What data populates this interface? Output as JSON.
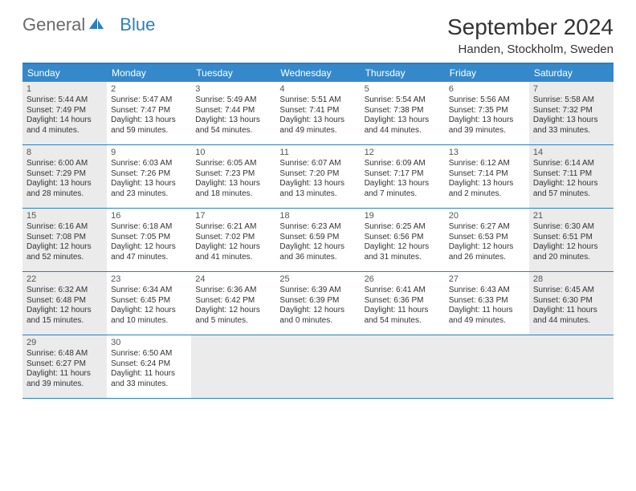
{
  "brand": {
    "part1": "General",
    "part2": "Blue"
  },
  "title": "September 2024",
  "location": "Handen, Stockholm, Sweden",
  "colors": {
    "headerBg": "#3589ca",
    "borderBlue": "#2b7fc1",
    "grayCell": "#ebebeb",
    "textDark": "#333333",
    "textMuted": "#6a6a6a"
  },
  "dayNames": [
    "Sunday",
    "Monday",
    "Tuesday",
    "Wednesday",
    "Thursday",
    "Friday",
    "Saturday"
  ],
  "weeks": [
    [
      {
        "n": "1",
        "gray": true,
        "sunrise": "5:44 AM",
        "sunset": "7:49 PM",
        "daylight": "14 hours and 4 minutes."
      },
      {
        "n": "2",
        "gray": false,
        "sunrise": "5:47 AM",
        "sunset": "7:47 PM",
        "daylight": "13 hours and 59 minutes."
      },
      {
        "n": "3",
        "gray": false,
        "sunrise": "5:49 AM",
        "sunset": "7:44 PM",
        "daylight": "13 hours and 54 minutes."
      },
      {
        "n": "4",
        "gray": false,
        "sunrise": "5:51 AM",
        "sunset": "7:41 PM",
        "daylight": "13 hours and 49 minutes."
      },
      {
        "n": "5",
        "gray": false,
        "sunrise": "5:54 AM",
        "sunset": "7:38 PM",
        "daylight": "13 hours and 44 minutes."
      },
      {
        "n": "6",
        "gray": false,
        "sunrise": "5:56 AM",
        "sunset": "7:35 PM",
        "daylight": "13 hours and 39 minutes."
      },
      {
        "n": "7",
        "gray": true,
        "sunrise": "5:58 AM",
        "sunset": "7:32 PM",
        "daylight": "13 hours and 33 minutes."
      }
    ],
    [
      {
        "n": "8",
        "gray": true,
        "sunrise": "6:00 AM",
        "sunset": "7:29 PM",
        "daylight": "13 hours and 28 minutes."
      },
      {
        "n": "9",
        "gray": false,
        "sunrise": "6:03 AM",
        "sunset": "7:26 PM",
        "daylight": "13 hours and 23 minutes."
      },
      {
        "n": "10",
        "gray": false,
        "sunrise": "6:05 AM",
        "sunset": "7:23 PM",
        "daylight": "13 hours and 18 minutes."
      },
      {
        "n": "11",
        "gray": false,
        "sunrise": "6:07 AM",
        "sunset": "7:20 PM",
        "daylight": "13 hours and 13 minutes."
      },
      {
        "n": "12",
        "gray": false,
        "sunrise": "6:09 AM",
        "sunset": "7:17 PM",
        "daylight": "13 hours and 7 minutes."
      },
      {
        "n": "13",
        "gray": false,
        "sunrise": "6:12 AM",
        "sunset": "7:14 PM",
        "daylight": "13 hours and 2 minutes."
      },
      {
        "n": "14",
        "gray": true,
        "sunrise": "6:14 AM",
        "sunset": "7:11 PM",
        "daylight": "12 hours and 57 minutes."
      }
    ],
    [
      {
        "n": "15",
        "gray": true,
        "sunrise": "6:16 AM",
        "sunset": "7:08 PM",
        "daylight": "12 hours and 52 minutes."
      },
      {
        "n": "16",
        "gray": false,
        "sunrise": "6:18 AM",
        "sunset": "7:05 PM",
        "daylight": "12 hours and 47 minutes."
      },
      {
        "n": "17",
        "gray": false,
        "sunrise": "6:21 AM",
        "sunset": "7:02 PM",
        "daylight": "12 hours and 41 minutes."
      },
      {
        "n": "18",
        "gray": false,
        "sunrise": "6:23 AM",
        "sunset": "6:59 PM",
        "daylight": "12 hours and 36 minutes."
      },
      {
        "n": "19",
        "gray": false,
        "sunrise": "6:25 AM",
        "sunset": "6:56 PM",
        "daylight": "12 hours and 31 minutes."
      },
      {
        "n": "20",
        "gray": false,
        "sunrise": "6:27 AM",
        "sunset": "6:53 PM",
        "daylight": "12 hours and 26 minutes."
      },
      {
        "n": "21",
        "gray": true,
        "sunrise": "6:30 AM",
        "sunset": "6:51 PM",
        "daylight": "12 hours and 20 minutes."
      }
    ],
    [
      {
        "n": "22",
        "gray": true,
        "sunrise": "6:32 AM",
        "sunset": "6:48 PM",
        "daylight": "12 hours and 15 minutes."
      },
      {
        "n": "23",
        "gray": false,
        "sunrise": "6:34 AM",
        "sunset": "6:45 PM",
        "daylight": "12 hours and 10 minutes."
      },
      {
        "n": "24",
        "gray": false,
        "sunrise": "6:36 AM",
        "sunset": "6:42 PM",
        "daylight": "12 hours and 5 minutes."
      },
      {
        "n": "25",
        "gray": false,
        "sunrise": "6:39 AM",
        "sunset": "6:39 PM",
        "daylight": "12 hours and 0 minutes."
      },
      {
        "n": "26",
        "gray": false,
        "sunrise": "6:41 AM",
        "sunset": "6:36 PM",
        "daylight": "11 hours and 54 minutes."
      },
      {
        "n": "27",
        "gray": false,
        "sunrise": "6:43 AM",
        "sunset": "6:33 PM",
        "daylight": "11 hours and 49 minutes."
      },
      {
        "n": "28",
        "gray": true,
        "sunrise": "6:45 AM",
        "sunset": "6:30 PM",
        "daylight": "11 hours and 44 minutes."
      }
    ],
    [
      {
        "n": "29",
        "gray": true,
        "sunrise": "6:48 AM",
        "sunset": "6:27 PM",
        "daylight": "11 hours and 39 minutes."
      },
      {
        "n": "30",
        "gray": false,
        "sunrise": "6:50 AM",
        "sunset": "6:24 PM",
        "daylight": "11 hours and 33 minutes."
      },
      {
        "empty": true
      },
      {
        "empty": true
      },
      {
        "empty": true
      },
      {
        "empty": true
      },
      {
        "empty": true
      }
    ]
  ],
  "labels": {
    "sunrise": "Sunrise: ",
    "sunset": "Sunset: ",
    "daylight": "Daylight: "
  }
}
